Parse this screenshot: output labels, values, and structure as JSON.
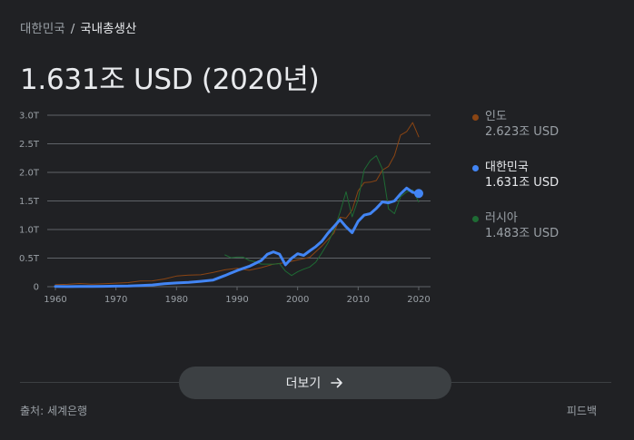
{
  "breadcrumb": {
    "parent": "대한민국",
    "separator": "/",
    "current": "국내총생산"
  },
  "headline": "1.631조 USD (2020년)",
  "legend": [
    {
      "name": "인도",
      "value": "2.623조 USD",
      "color": "#8B4513",
      "active": false
    },
    {
      "name": "대한민국",
      "value": "1.631조 USD",
      "color": "#4285f4",
      "active": true
    },
    {
      "name": "러시아",
      "value": "1.483조 USD",
      "color": "#1e6b34",
      "active": false
    }
  ],
  "chart_data": {
    "type": "line",
    "xlim": [
      1960,
      2020
    ],
    "ylim": [
      0,
      3.0
    ],
    "xticks": [
      "1960",
      "1970",
      "1980",
      "1990",
      "2000",
      "2010",
      "2020"
    ],
    "yticks": [
      "0",
      "0.5T",
      "1.0T",
      "1.5T",
      "2.0T",
      "2.5T",
      "3.0T"
    ],
    "grid": true,
    "series": [
      {
        "name": "인도",
        "color": "#8B4513",
        "width": 1,
        "points": [
          [
            1960,
            0.037
          ],
          [
            1962,
            0.042
          ],
          [
            1964,
            0.056
          ],
          [
            1966,
            0.045
          ],
          [
            1968,
            0.053
          ],
          [
            1970,
            0.062
          ],
          [
            1972,
            0.071
          ],
          [
            1974,
            0.099
          ],
          [
            1976,
            0.102
          ],
          [
            1978,
            0.135
          ],
          [
            1980,
            0.186
          ],
          [
            1982,
            0.201
          ],
          [
            1984,
            0.208
          ],
          [
            1986,
            0.248
          ],
          [
            1988,
            0.296
          ],
          [
            1990,
            0.321
          ],
          [
            1992,
            0.288
          ],
          [
            1994,
            0.333
          ],
          [
            1996,
            0.393
          ],
          [
            1998,
            0.421
          ],
          [
            2000,
            0.468
          ],
          [
            2002,
            0.514
          ],
          [
            2004,
            0.709
          ],
          [
            2006,
            0.94
          ],
          [
            2007,
            1.216
          ],
          [
            2008,
            1.199
          ],
          [
            2009,
            1.342
          ],
          [
            2010,
            1.676
          ],
          [
            2011,
            1.823
          ],
          [
            2012,
            1.828
          ],
          [
            2013,
            1.857
          ],
          [
            2014,
            2.039
          ],
          [
            2015,
            2.104
          ],
          [
            2016,
            2.295
          ],
          [
            2017,
            2.652
          ],
          [
            2018,
            2.713
          ],
          [
            2019,
            2.871
          ],
          [
            2020,
            2.623
          ]
        ]
      },
      {
        "name": "러시아",
        "color": "#1e6b34",
        "width": 1,
        "points": [
          [
            1988,
            0.555
          ],
          [
            1989,
            0.506
          ],
          [
            1990,
            0.517
          ],
          [
            1991,
            0.518
          ],
          [
            1992,
            0.46
          ],
          [
            1993,
            0.435
          ],
          [
            1994,
            0.395
          ],
          [
            1995,
            0.395
          ],
          [
            1996,
            0.392
          ],
          [
            1997,
            0.405
          ],
          [
            1998,
            0.271
          ],
          [
            1999,
            0.196
          ],
          [
            2000,
            0.26
          ],
          [
            2001,
            0.307
          ],
          [
            2002,
            0.345
          ],
          [
            2003,
            0.43
          ],
          [
            2004,
            0.591
          ],
          [
            2005,
            0.764
          ],
          [
            2006,
            0.99
          ],
          [
            2007,
            1.3
          ],
          [
            2008,
            1.661
          ],
          [
            2009,
            1.223
          ],
          [
            2010,
            1.525
          ],
          [
            2011,
            2.046
          ],
          [
            2012,
            2.208
          ],
          [
            2013,
            2.292
          ],
          [
            2014,
            2.059
          ],
          [
            2015,
            1.363
          ],
          [
            2016,
            1.277
          ],
          [
            2017,
            1.574
          ],
          [
            2018,
            1.657
          ],
          [
            2019,
            1.693
          ],
          [
            2020,
            1.483
          ]
        ]
      },
      {
        "name": "대한민국",
        "color": "#4285f4",
        "width": 3,
        "points": [
          [
            1960,
            0.004
          ],
          [
            1962,
            0.002
          ],
          [
            1964,
            0.003
          ],
          [
            1966,
            0.004
          ],
          [
            1968,
            0.006
          ],
          [
            1970,
            0.009
          ],
          [
            1972,
            0.011
          ],
          [
            1974,
            0.02
          ],
          [
            1976,
            0.03
          ],
          [
            1978,
            0.052
          ],
          [
            1980,
            0.065
          ],
          [
            1982,
            0.075
          ],
          [
            1984,
            0.093
          ],
          [
            1986,
            0.114
          ],
          [
            1988,
            0.196
          ],
          [
            1990,
            0.283
          ],
          [
            1992,
            0.355
          ],
          [
            1994,
            0.459
          ],
          [
            1995,
            0.566
          ],
          [
            1996,
            0.61
          ],
          [
            1997,
            0.57
          ],
          [
            1998,
            0.383
          ],
          [
            1999,
            0.497
          ],
          [
            2000,
            0.576
          ],
          [
            2001,
            0.548
          ],
          [
            2002,
            0.627
          ],
          [
            2003,
            0.702
          ],
          [
            2004,
            0.793
          ],
          [
            2005,
            0.935
          ],
          [
            2006,
            1.053
          ],
          [
            2007,
            1.172
          ],
          [
            2008,
            1.047
          ],
          [
            2009,
            0.944
          ],
          [
            2010,
            1.144
          ],
          [
            2011,
            1.253
          ],
          [
            2012,
            1.278
          ],
          [
            2013,
            1.37
          ],
          [
            2014,
            1.484
          ],
          [
            2015,
            1.466
          ],
          [
            2016,
            1.5
          ],
          [
            2017,
            1.624
          ],
          [
            2018,
            1.725
          ],
          [
            2019,
            1.651
          ],
          [
            2020,
            1.631
          ]
        ]
      }
    ]
  },
  "more_button": {
    "label": "더보기",
    "icon": "arrow-right-icon"
  },
  "source": "출처: 세계은행",
  "feedback": "피드백"
}
